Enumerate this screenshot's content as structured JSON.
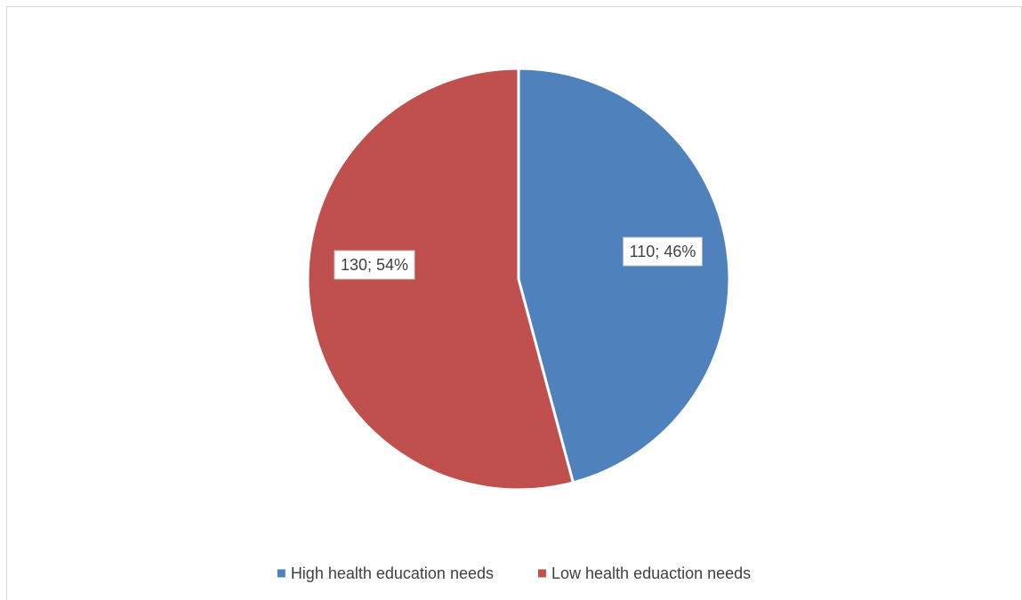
{
  "chart_data": {
    "type": "pie",
    "title": "",
    "slices": [
      {
        "label": "High health education needs",
        "value": 110,
        "percent": 46,
        "data_label": "110; 46%",
        "color": "#4f81bd"
      },
      {
        "label": "Low health eduaction needs",
        "value": 130,
        "percent": 54,
        "data_label": "130; 54%",
        "color": "#c0504d"
      }
    ],
    "legend_position": "bottom",
    "start_angle_deg": 0,
    "direction": "clockwise"
  }
}
